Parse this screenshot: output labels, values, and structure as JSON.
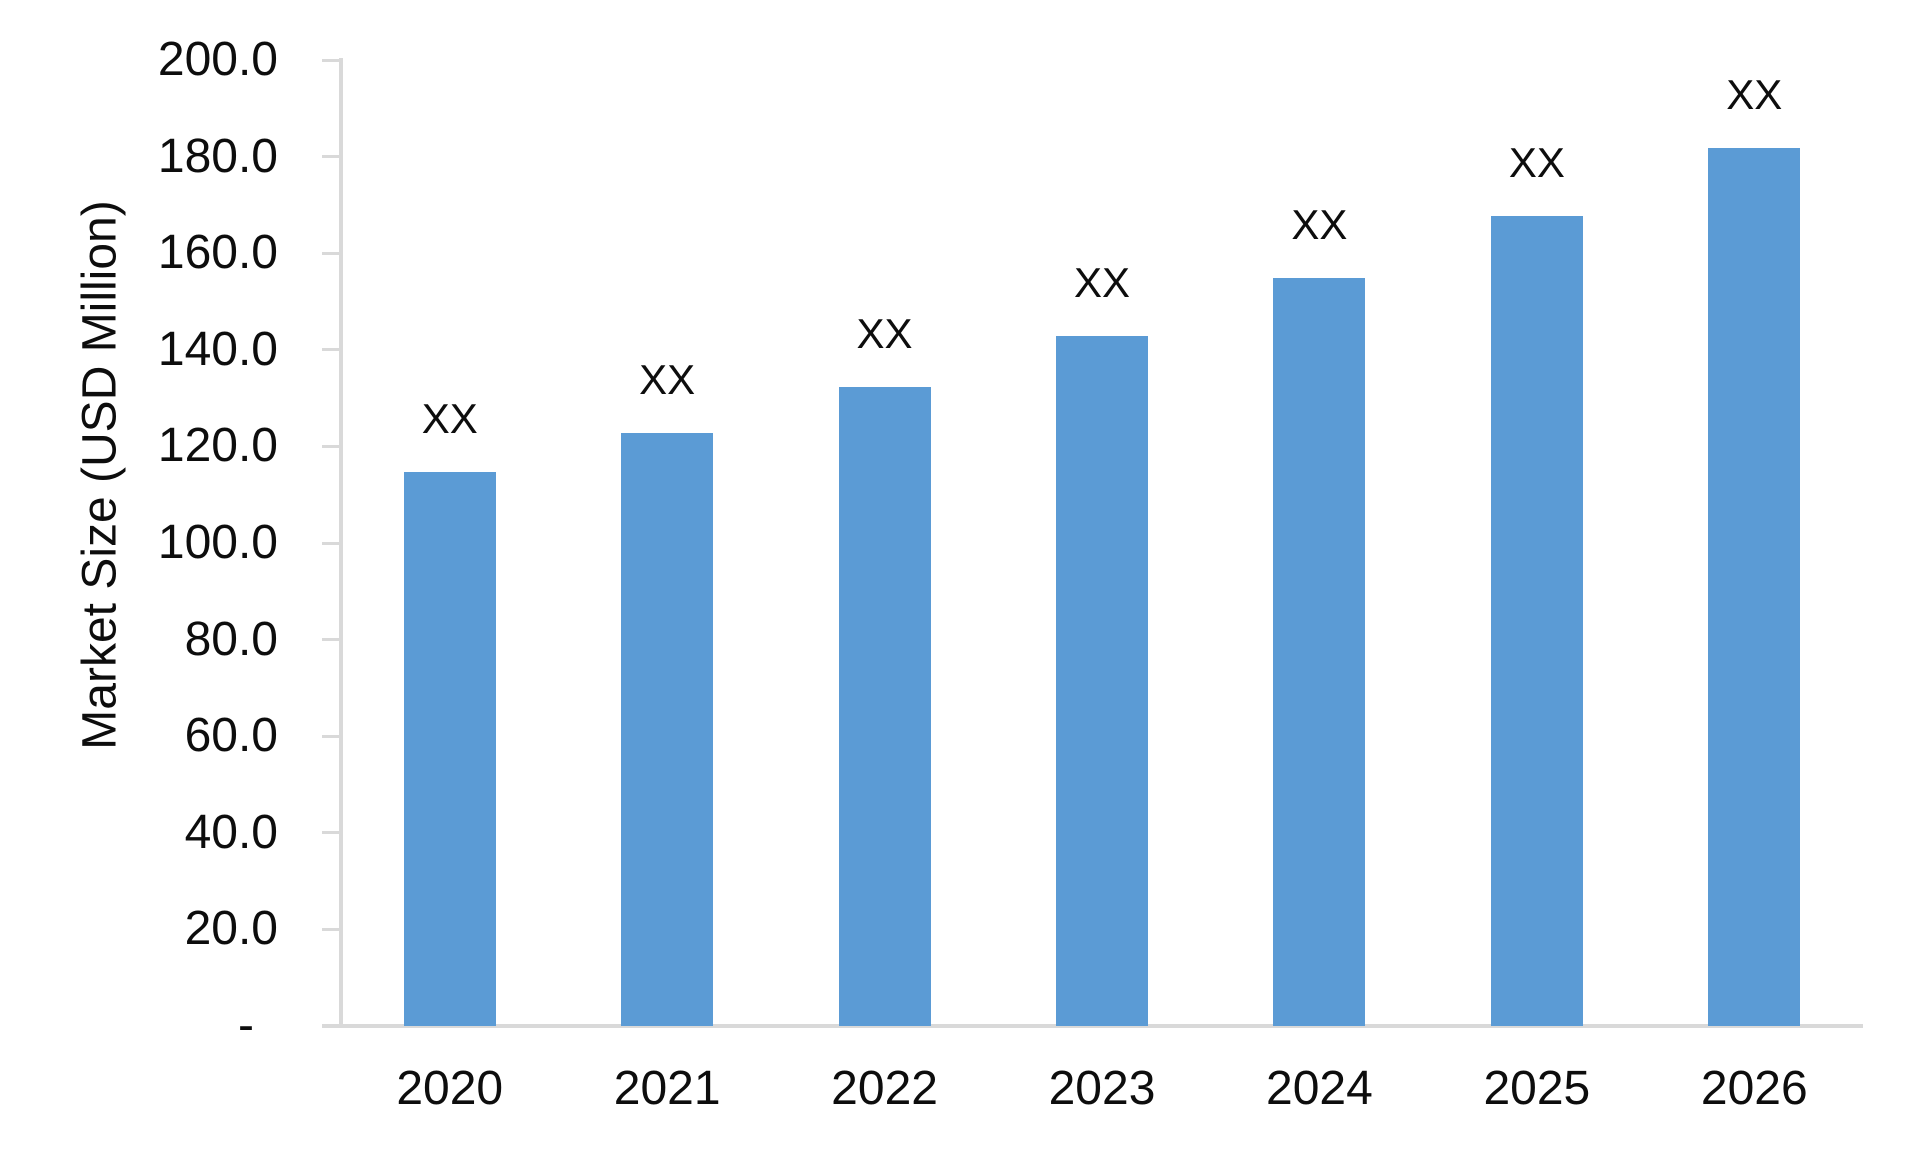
{
  "chart_data": {
    "type": "bar",
    "title": "",
    "ylabel": "Market Size (USD Million)",
    "xlabel": "",
    "categories": [
      "2020",
      "2021",
      "2022",
      "2023",
      "2024",
      "2025",
      "2026"
    ],
    "values": [
      114.8,
      122.8,
      132.3,
      142.9,
      154.9,
      167.7,
      181.8
    ],
    "bar_labels": [
      "XX",
      "XX",
      "XX",
      "XX",
      "XX",
      "XX",
      "XX"
    ],
    "ylim": [
      0,
      200
    ],
    "ytick_interval": 20,
    "ytick_labels": [
      "-",
      "20.0",
      "40.0",
      "60.0",
      "80.0",
      "100.0",
      "120.0",
      "140.0",
      "160.0",
      "180.0",
      "200.0"
    ],
    "grid": false,
    "legend": false,
    "legend_position": "none",
    "bar_color": "#5B9BD5",
    "axis_color": "#D9D9D9",
    "text_color": "#0D0D0D"
  }
}
